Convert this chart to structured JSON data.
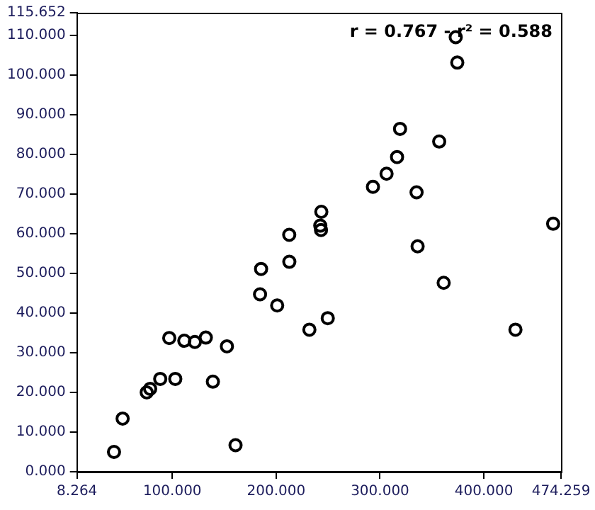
{
  "chart_data": {
    "type": "scatter",
    "annotations": [
      "r = 0.767 - r² = 0.588"
    ],
    "x": [
      43.9,
      52.2,
      75.4,
      78.7,
      88.4,
      102.9,
      97.1,
      111.6,
      121.7,
      132.3,
      139.1,
      152.6,
      160.9,
      184.5,
      185.5,
      201.0,
      212.6,
      212.7,
      232.0,
      249.7,
      243.5,
      242.5,
      243.2,
      293.2,
      306.3,
      316.4,
      319.3,
      335.2,
      336.2,
      357.0,
      361.3,
      372.9,
      374.4,
      430.4,
      466.7
    ],
    "values": [
      5.0,
      13.4,
      20.0,
      20.9,
      23.4,
      23.4,
      33.7,
      33.0,
      32.7,
      33.8,
      22.7,
      31.6,
      6.7,
      44.7,
      51.1,
      41.9,
      59.7,
      52.9,
      35.8,
      38.7,
      65.5,
      62.0,
      60.9,
      71.8,
      75.1,
      79.3,
      86.4,
      70.4,
      56.8,
      83.2,
      47.6,
      109.5,
      103.1,
      35.8,
      62.5
    ],
    "color": "#000000",
    "marker": "circle",
    "grid": false,
    "legend": false,
    "xlim": [
      8.264,
      474.259
    ],
    "xticks": [
      8.264,
      {
        "value": 100,
        "label": "100.000"
      },
      {
        "value": 200,
        "label": "200.000"
      },
      {
        "value": 300,
        "label": "300.000"
      },
      {
        "value": 400,
        "label": "400.000"
      },
      474.259
    ],
    "ylim": [
      0,
      115.652
    ],
    "yticks": [
      {
        "value": 0,
        "label": "0.000"
      },
      {
        "value": 10,
        "label": "10.000"
      },
      {
        "value": 20,
        "label": "20.000"
      },
      {
        "value": 30,
        "label": "30.000"
      },
      {
        "value": 40,
        "label": "40.000"
      },
      {
        "value": 50,
        "label": "50.000"
      },
      {
        "value": 60,
        "label": "60.000"
      },
      {
        "value": 70,
        "label": "70.000"
      },
      {
        "value": 80,
        "label": "80.000"
      },
      {
        "value": 90,
        "label": "90.000"
      },
      {
        "value": 100,
        "label": "100.000"
      },
      {
        "value": 110,
        "label": "110.000"
      },
      115.652
    ]
  }
}
